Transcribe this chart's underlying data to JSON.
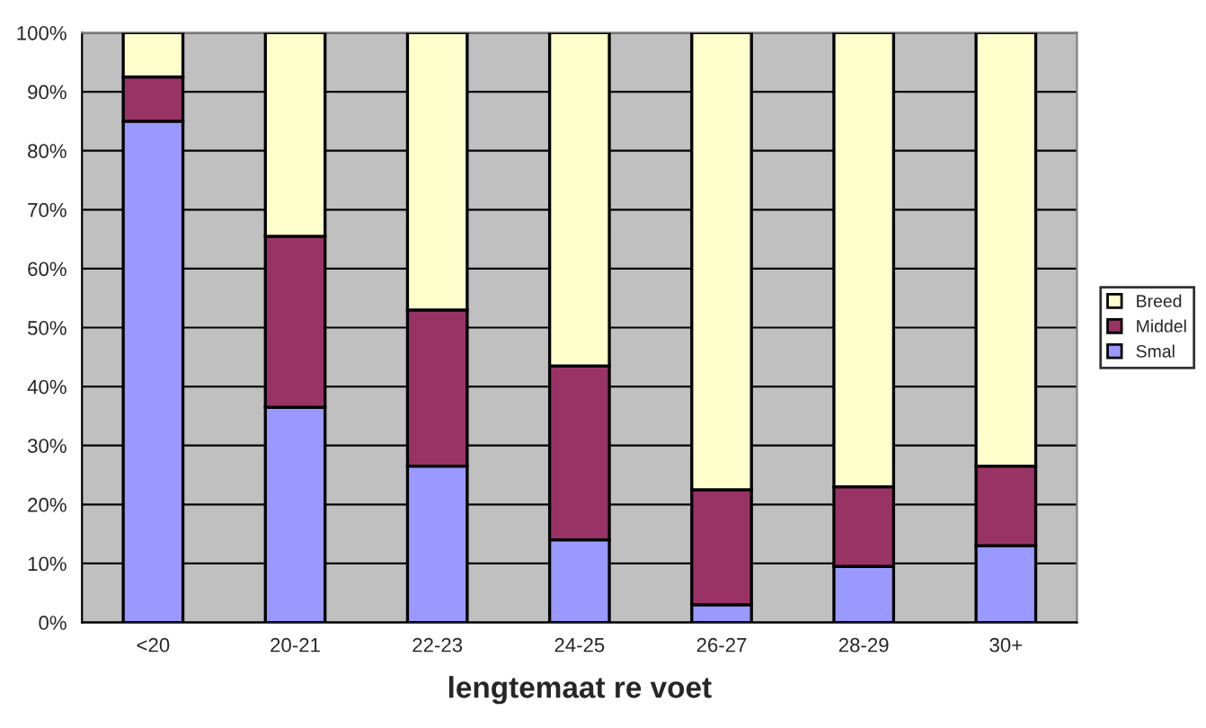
{
  "chart_data": {
    "type": "bar",
    "stacked": true,
    "xlabel": "lengtemaat re voet",
    "categories": [
      "<20",
      "20-21",
      "22-23",
      "24-25",
      "26-27",
      "28-29",
      "30+"
    ],
    "series": [
      {
        "name": "Smal",
        "color": "#9999ff",
        "values": [
          85,
          36.5,
          26.5,
          14,
          3,
          9.5,
          13
        ]
      },
      {
        "name": "Middel",
        "color": "#993366",
        "values": [
          7.5,
          29,
          26.5,
          29.5,
          19.5,
          13.5,
          13.5
        ]
      },
      {
        "name": "Breed",
        "color": "#ffffcc",
        "values": [
          7.5,
          34.5,
          47,
          56.5,
          77.5,
          77,
          73.5
        ]
      }
    ],
    "ylim": [
      0,
      100
    ],
    "yticks": [
      {
        "value": 0,
        "label": "0%"
      },
      {
        "value": 10,
        "label": "10%"
      },
      {
        "value": 20,
        "label": "20%"
      },
      {
        "value": 30,
        "label": "30%"
      },
      {
        "value": 40,
        "label": "40%"
      },
      {
        "value": 50,
        "label": "50%"
      },
      {
        "value": 60,
        "label": "60%"
      },
      {
        "value": 70,
        "label": "70%"
      },
      {
        "value": 80,
        "label": "80%"
      },
      {
        "value": 90,
        "label": "90%"
      },
      {
        "value": 100,
        "label": "100%"
      }
    ],
    "grid": "y",
    "legend": "right"
  }
}
